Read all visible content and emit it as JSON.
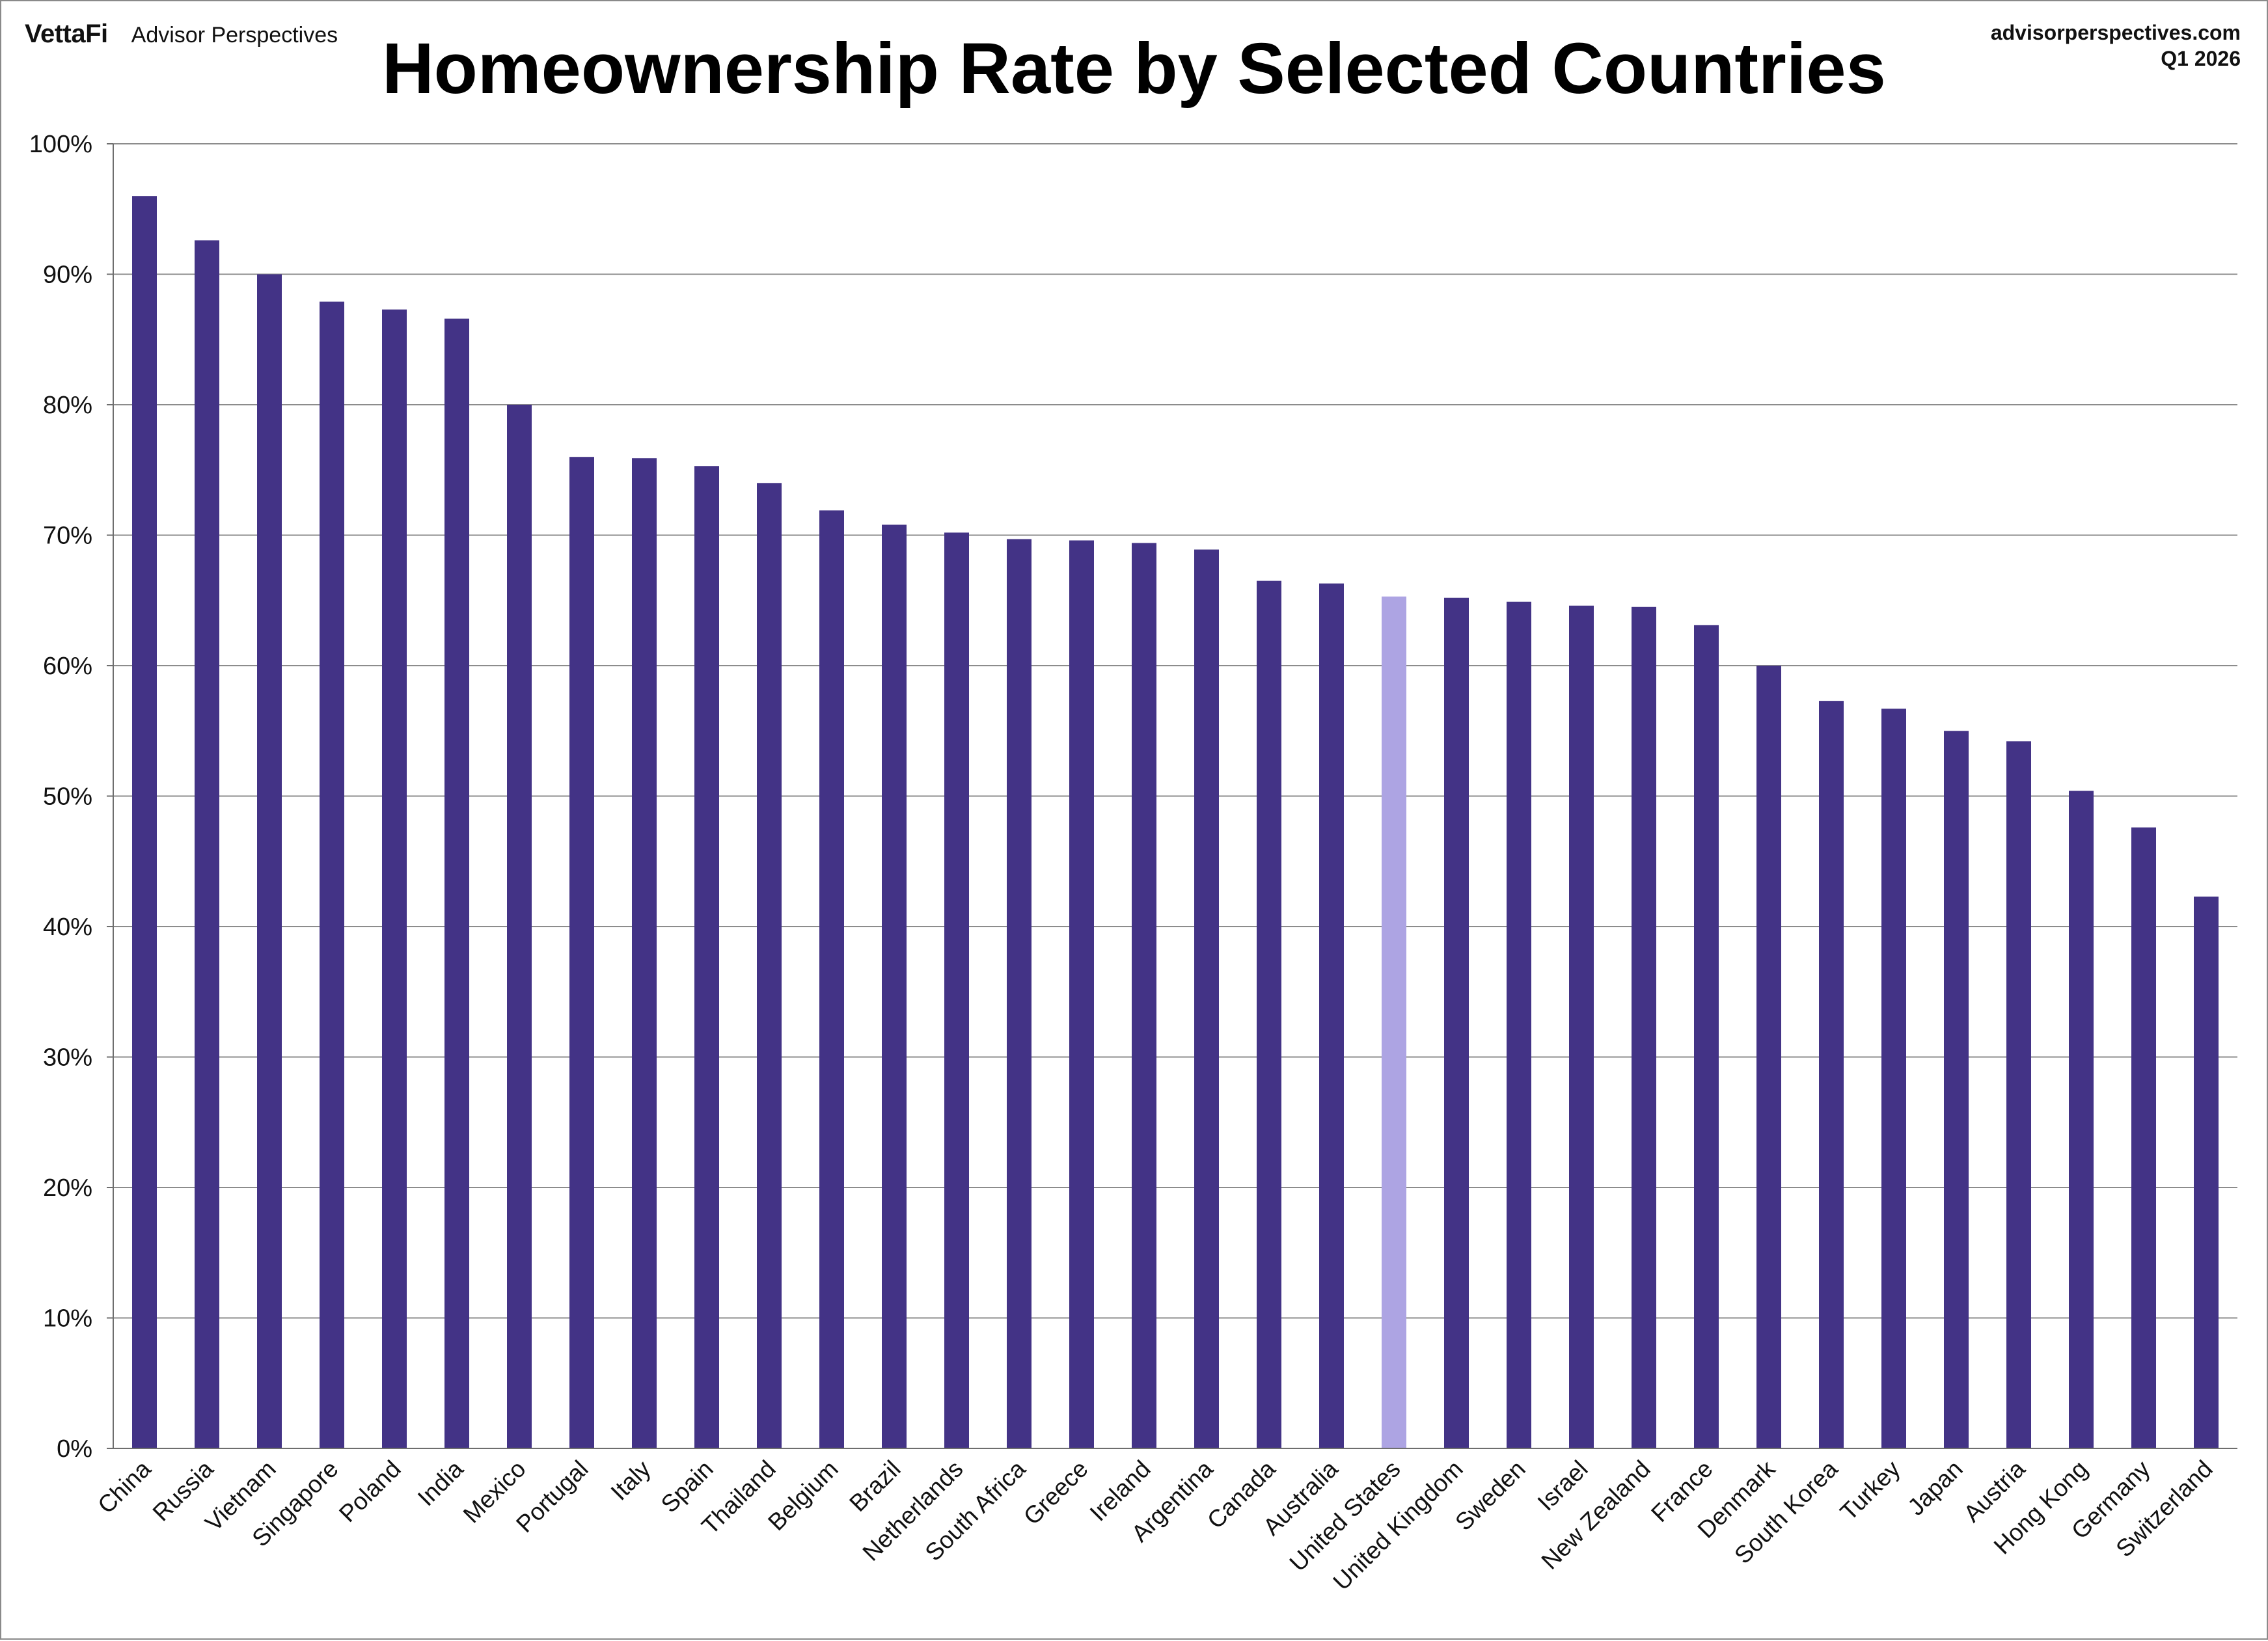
{
  "header": {
    "brand": "VettaFi",
    "brand_sub": "Advisor Perspectives",
    "title": "Homeownership Rate by Selected Countries",
    "source_site": "advisorperspectives.com",
    "source_period": "Q1 2026"
  },
  "colors": {
    "bar": "#433386",
    "highlight": "#ada4e3",
    "grid": "#8c8c8c",
    "axis": "#6e6e6e"
  },
  "chart_data": {
    "type": "bar",
    "title": "Homeownership Rate by Selected Countries",
    "xlabel": "",
    "ylabel": "",
    "ylim": [
      0,
      100
    ],
    "y_ticks": [
      0,
      10,
      20,
      30,
      40,
      50,
      60,
      70,
      80,
      90,
      100
    ],
    "y_tick_labels": [
      "0%",
      "10%",
      "20%",
      "30%",
      "40%",
      "50%",
      "60%",
      "70%",
      "80%",
      "90%",
      "100%"
    ],
    "grid": true,
    "legend": "none",
    "highlight_category": "United States",
    "categories": [
      "China",
      "Russia",
      "Vietnam",
      "Singapore",
      "Poland",
      "India",
      "Mexico",
      "Portugal",
      "Italy",
      "Spain",
      "Thailand",
      "Belgium",
      "Brazil",
      "Netherlands",
      "South Africa",
      "Greece",
      "Ireland",
      "Argentina",
      "Canada",
      "Australia",
      "United States",
      "United Kingdom",
      "Sweden",
      "Israel",
      "New Zealand",
      "France",
      "Denmark",
      "South Korea",
      "Turkey",
      "Japan",
      "Austria",
      "Hong Kong",
      "Germany",
      "Switzerland"
    ],
    "values": [
      96.0,
      92.6,
      90.0,
      87.9,
      87.3,
      86.6,
      80.0,
      76.0,
      75.9,
      75.3,
      74.0,
      71.9,
      70.8,
      70.2,
      69.7,
      69.6,
      69.4,
      68.9,
      66.5,
      66.3,
      65.3,
      65.2,
      64.9,
      64.6,
      64.5,
      63.1,
      60.0,
      57.3,
      56.7,
      55.0,
      54.2,
      50.4,
      47.6,
      42.3
    ]
  }
}
